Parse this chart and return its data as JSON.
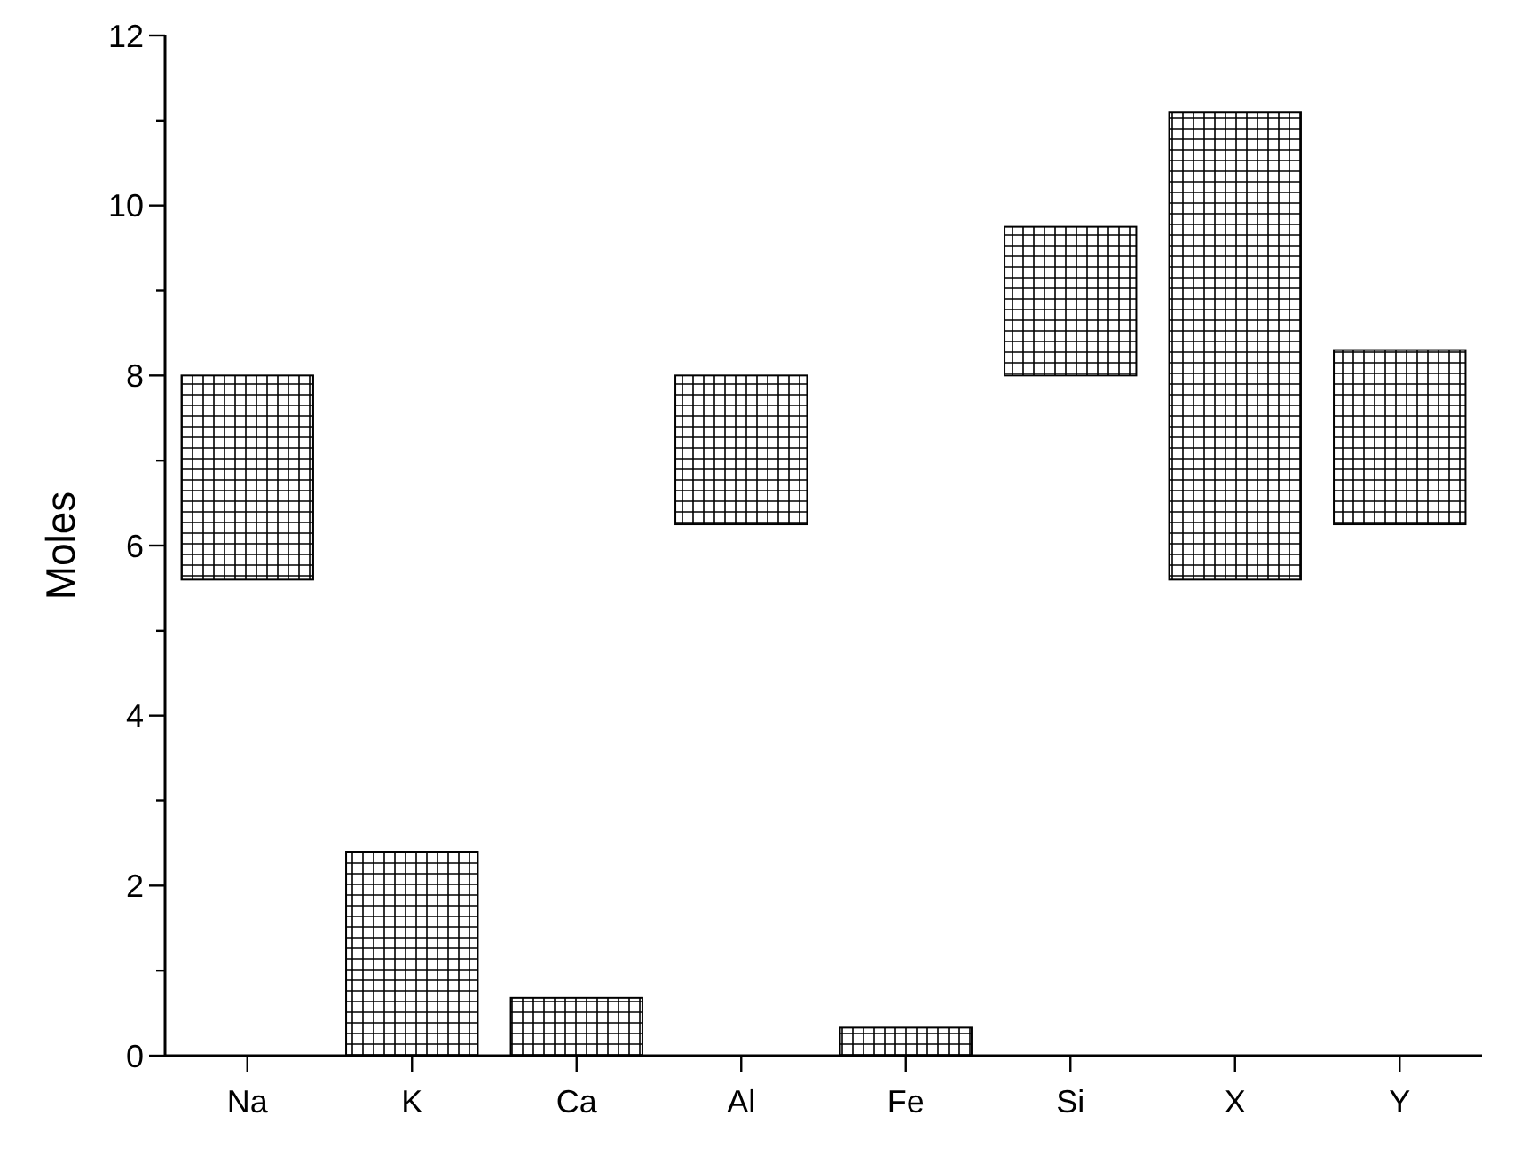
{
  "chart_data": {
    "type": "bar",
    "ylabel": "Moles",
    "categories": [
      "Na",
      "K",
      "Ca",
      "Al",
      "Fe",
      "Si",
      "X",
      "Y"
    ],
    "base": [
      5.6,
      0,
      0,
      6.25,
      0,
      8,
      5.6,
      6.25
    ],
    "values": [
      2.4,
      2.4,
      0.68,
      1.75,
      0.33,
      1.75,
      5.5,
      2.05
    ],
    "color": "#000000",
    "ylim": [
      0,
      12
    ],
    "yticks": [
      0,
      {
        "value": 1,
        "label": null
      },
      2,
      {
        "value": 3,
        "label": null
      },
      4,
      {
        "value": 5,
        "label": null
      },
      6,
      {
        "value": 7,
        "label": null
      },
      8,
      {
        "value": 9,
        "label": null
      },
      10,
      {
        "value": 11,
        "label": null
      },
      12
    ],
    "grid": false
  }
}
